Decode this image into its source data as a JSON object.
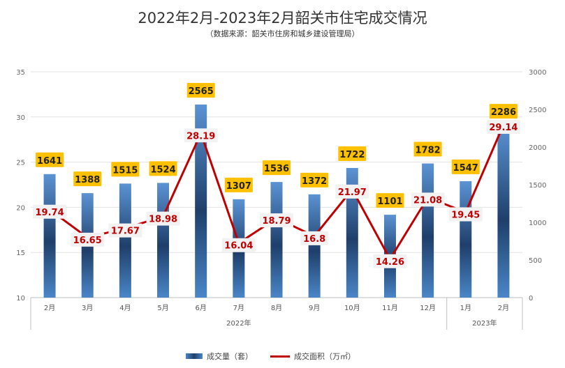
{
  "chart_data": {
    "type": "bar+line",
    "title": "2022年2月-2023年2月韶关市住宅成交情况",
    "subtitle": "（数据来源：韶关市住房和城乡建设管理局）",
    "categories": [
      "2月",
      "3月",
      "4月",
      "5月",
      "6月",
      "7月",
      "8月",
      "9月",
      "10月",
      "11月",
      "12月",
      "1月",
      "2月"
    ],
    "groups": [
      {
        "label": "2022年",
        "span": 11
      },
      {
        "label": "2023年",
        "span": 2
      }
    ],
    "series": [
      {
        "name": "成交量（套）",
        "type": "bar",
        "axis": "right",
        "values": [
          1641,
          1388,
          1515,
          1524,
          2565,
          1307,
          1536,
          1372,
          1722,
          1101,
          1782,
          1547,
          2286
        ]
      },
      {
        "name": "成交面积（万㎡）",
        "type": "line",
        "axis": "left",
        "values": [
          19.74,
          16.65,
          17.67,
          18.98,
          28.19,
          16.04,
          18.79,
          16.8,
          21.97,
          14.26,
          21.08,
          19.45,
          29.14
        ],
        "labels": [
          "19.74",
          "16.65",
          "17.67",
          "18.98",
          "28.19",
          "16.04",
          "18.79",
          "16.8",
          "21.97",
          "14.26",
          "21.08",
          "19.45",
          "29.14"
        ]
      }
    ],
    "y_left": {
      "min": 10,
      "max": 35,
      "ticks": [
        10,
        15,
        20,
        25,
        30,
        35
      ]
    },
    "y_right": {
      "min": 0,
      "max": 3000,
      "ticks": [
        0,
        500,
        1000,
        1500,
        2000,
        2500,
        3000
      ]
    },
    "grid": true,
    "legend_position": "bottom",
    "colors": {
      "bar": "#2e5f98",
      "line": "#c00000",
      "bar_label_bg": "#ffc000",
      "line_label_bg": "#f2f2f2"
    }
  }
}
